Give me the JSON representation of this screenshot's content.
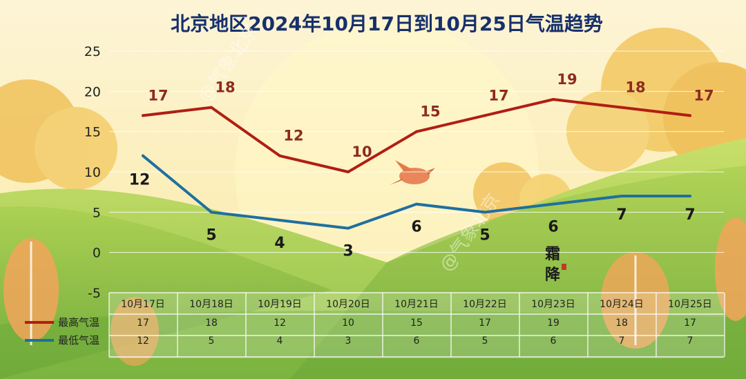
{
  "colors": {
    "high": "#b01e14",
    "low": "#1f6f9f",
    "title": "#16306b"
  },
  "watermark": "@气象北京",
  "seal_text": "霜降",
  "table": {
    "high_label": "最高气温",
    "low_label": "最低气温"
  },
  "chart_data": {
    "type": "line",
    "title": "北京地区2024年10月17日到10月25日气温趋势",
    "categories": [
      "10月17日",
      "10月18日",
      "10月19日",
      "10月20日",
      "10月21日",
      "10月22日",
      "10月23日",
      "10月24日",
      "10月25日"
    ],
    "series": [
      {
        "name": "最高气温",
        "values": [
          17,
          18,
          12,
          10,
          15,
          17,
          19,
          18,
          17
        ]
      },
      {
        "name": "最低气温",
        "values": [
          12,
          5,
          4,
          3,
          6,
          5,
          6,
          7,
          7
        ]
      }
    ],
    "ylim": [
      -5,
      25
    ],
    "yticks": [
      -5,
      0,
      5,
      10,
      15,
      20,
      25
    ],
    "grid": true,
    "legend": "table-bottom"
  }
}
